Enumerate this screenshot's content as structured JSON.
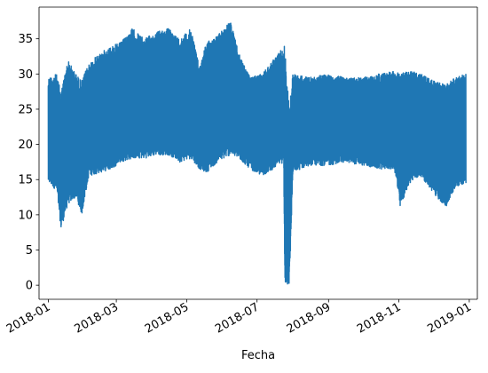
{
  "chart_data": {
    "type": "line",
    "title": "",
    "xlabel": "Fecha",
    "ylabel": "",
    "ylim": [
      -2,
      39.5
    ],
    "x_range": [
      "2017-12-24",
      "2019-01-08"
    ],
    "y_ticks": [
      0,
      5,
      10,
      15,
      20,
      25,
      30,
      35
    ],
    "x_ticks": [
      "2018-01",
      "2018-03",
      "2018-05",
      "2018-07",
      "2018-09",
      "2018-11",
      "2019-01"
    ],
    "grid": false,
    "series": [
      {
        "color": "#1f77b4",
        "envelope": [
          {
            "date": "2018-01-01",
            "min": 14.5,
            "max": 29.5
          },
          {
            "date": "2018-01-08",
            "min": 13.5,
            "max": 30.0
          },
          {
            "date": "2018-01-12",
            "min": 8.0,
            "max": 27.5
          },
          {
            "date": "2018-01-18",
            "min": 11.5,
            "max": 32.0
          },
          {
            "date": "2018-01-25",
            "min": 12.5,
            "max": 30.0
          },
          {
            "date": "2018-01-30",
            "min": 10.0,
            "max": 29.0
          },
          {
            "date": "2018-02-05",
            "min": 15.5,
            "max": 31.5
          },
          {
            "date": "2018-02-15",
            "min": 16.0,
            "max": 33.0
          },
          {
            "date": "2018-02-25",
            "min": 16.5,
            "max": 34.0
          },
          {
            "date": "2018-03-05",
            "min": 17.5,
            "max": 34.5
          },
          {
            "date": "2018-03-15",
            "min": 18.0,
            "max": 36.5
          },
          {
            "date": "2018-03-25",
            "min": 18.0,
            "max": 35.0
          },
          {
            "date": "2018-04-05",
            "min": 18.5,
            "max": 36.0
          },
          {
            "date": "2018-04-15",
            "min": 18.5,
            "max": 36.5
          },
          {
            "date": "2018-04-25",
            "min": 17.5,
            "max": 35.0
          },
          {
            "date": "2018-05-05",
            "min": 18.0,
            "max": 36.5
          },
          {
            "date": "2018-05-12",
            "min": 16.5,
            "max": 31.0
          },
          {
            "date": "2018-05-18",
            "min": 16.0,
            "max": 34.5
          },
          {
            "date": "2018-05-28",
            "min": 17.5,
            "max": 35.5
          },
          {
            "date": "2018-06-08",
            "min": 18.5,
            "max": 37.5
          },
          {
            "date": "2018-06-15",
            "min": 18.0,
            "max": 33.0
          },
          {
            "date": "2018-06-25",
            "min": 16.5,
            "max": 29.5
          },
          {
            "date": "2018-07-05",
            "min": 15.5,
            "max": 30.0
          },
          {
            "date": "2018-07-15",
            "min": 16.5,
            "max": 32.0
          },
          {
            "date": "2018-07-24",
            "min": 17.5,
            "max": 34.0
          },
          {
            "date": "2018-07-25",
            "min": 0.0,
            "max": 34.0
          },
          {
            "date": "2018-07-29",
            "min": 0.0,
            "max": 25.0
          },
          {
            "date": "2018-08-01",
            "min": 16.0,
            "max": 30.0
          },
          {
            "date": "2018-08-15",
            "min": 17.0,
            "max": 29.5
          },
          {
            "date": "2018-09-01",
            "min": 17.0,
            "max": 30.0
          },
          {
            "date": "2018-09-15",
            "min": 17.5,
            "max": 29.5
          },
          {
            "date": "2018-10-01",
            "min": 17.0,
            "max": 29.5
          },
          {
            "date": "2018-10-15",
            "min": 16.5,
            "max": 30.0
          },
          {
            "date": "2018-10-28",
            "min": 16.5,
            "max": 30.5
          },
          {
            "date": "2018-11-02",
            "min": 11.0,
            "max": 30.0
          },
          {
            "date": "2018-11-10",
            "min": 14.5,
            "max": 30.5
          },
          {
            "date": "2018-11-20",
            "min": 15.5,
            "max": 30.0
          },
          {
            "date": "2018-12-01",
            "min": 13.0,
            "max": 29.0
          },
          {
            "date": "2018-12-12",
            "min": 11.0,
            "max": 28.5
          },
          {
            "date": "2018-12-20",
            "min": 14.0,
            "max": 29.5
          },
          {
            "date": "2018-12-29",
            "min": 14.5,
            "max": 30.0
          }
        ]
      }
    ]
  }
}
